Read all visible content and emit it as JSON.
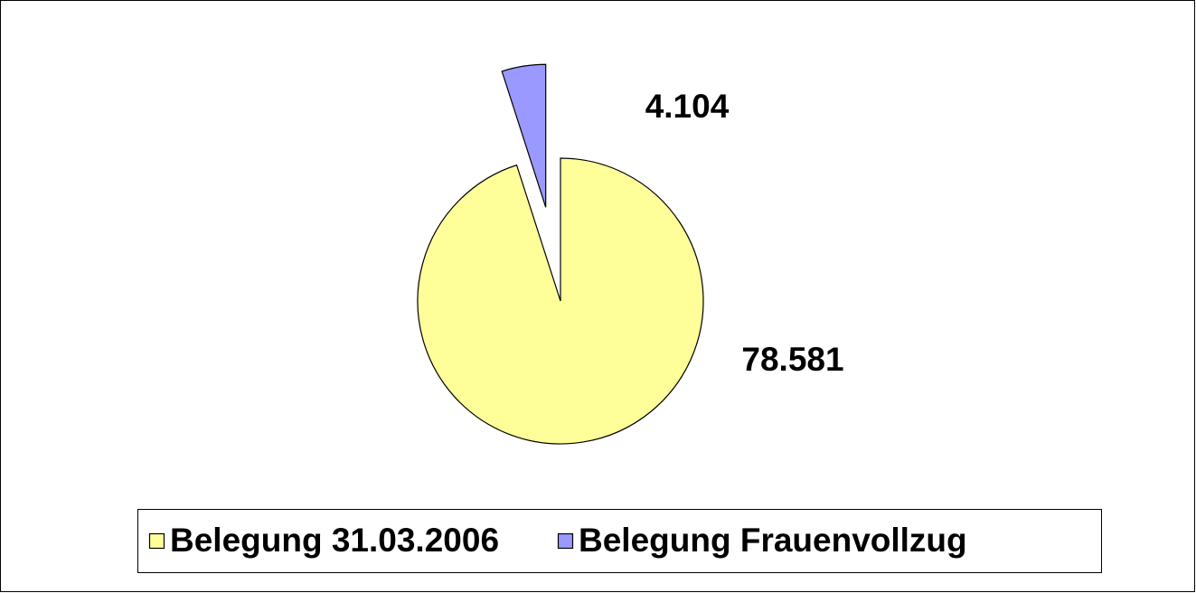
{
  "chart_data": {
    "type": "pie",
    "categories": [
      "Belegung 31.03.2006",
      "Belegung Frauenvollzug"
    ],
    "values": [
      78581,
      4104
    ],
    "value_labels": [
      "78.581",
      "4.104"
    ],
    "colors": [
      "#ffff99",
      "#9999ff"
    ],
    "legend": "bottom"
  }
}
